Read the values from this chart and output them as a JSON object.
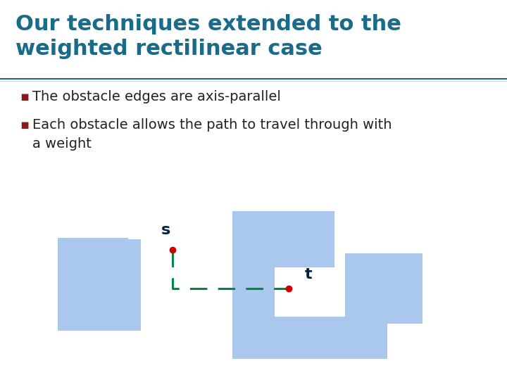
{
  "title_line1": "Our techniques extended to the",
  "title_line2": "weighted rectilinear case",
  "title_color": "#1a6b8a",
  "title_fontsize": 22,
  "bullet_color": "#8b1a1a",
  "bullet_text_color": "#222222",
  "bullet1": "The obstacle edges are axis-parallel",
  "bullet2": "Each obstacle allows the path to travel through with\na weight",
  "bullet_fontsize": 14,
  "separator_color": "#1a6b8a",
  "bg_color": "#ffffff",
  "obstacle_color": "#aac8ee",
  "path_color": "#008844",
  "point_color": "#cc0000",
  "label_color": "#002244",
  "s_label": "s",
  "t_label": "t"
}
